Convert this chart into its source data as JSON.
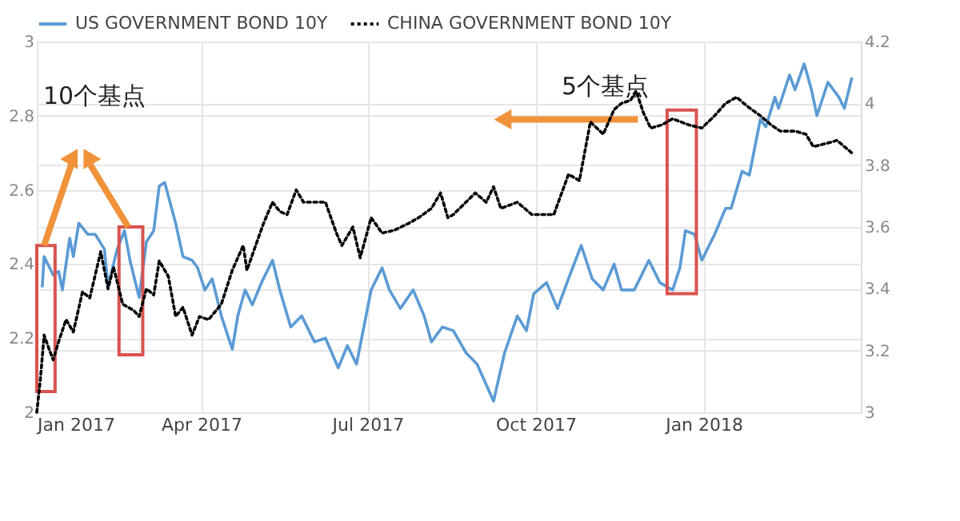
{
  "chart_data": {
    "type": "line",
    "legend": "top left",
    "grid": true,
    "marker": "none",
    "xlim": [
      "2017-01-01",
      "2018-03-28"
    ],
    "xticks": [
      {
        "value": "2017-01-01",
        "label": "Jan 2017"
      },
      {
        "value": "2017-04-01",
        "label": "Apr 2017"
      },
      {
        "value": "2017-07-01",
        "label": "Jul 2017"
      },
      {
        "value": "2017-10-01",
        "label": "Oct 2017"
      },
      {
        "value": "2018-01-01",
        "label": "Jan 2018"
      }
    ],
    "ylim": [
      2,
      3
    ],
    "yticks": [
      2,
      2.2,
      2.4,
      2.6,
      2.8,
      3
    ],
    "y2lim": [
      3,
      4.2
    ],
    "y2ticks": [
      3,
      3.2,
      3.4,
      3.6,
      3.8,
      4,
      4.2
    ],
    "annotations": [
      "10个基点",
      "5个基点"
    ],
    "series": [
      {
        "name": "US GOVERNMENT BOND 10Y",
        "color": "#5b9bd5",
        "line_style": "solid",
        "x": [
          "2017-01-04",
          "2017-01-05",
          "2017-01-10",
          "2017-01-13",
          "2017-01-15",
          "2017-01-19",
          "2017-01-21",
          "2017-01-24",
          "2017-01-29",
          "2017-02-02",
          "2017-02-07",
          "2017-02-09",
          "2017-02-14",
          "2017-02-18",
          "2017-02-21",
          "2017-02-26",
          "2017-03-02",
          "2017-03-06",
          "2017-03-09",
          "2017-03-12",
          "2017-03-18",
          "2017-03-22",
          "2017-03-27",
          "2017-03-30",
          "2017-04-03",
          "2017-04-07",
          "2017-04-12",
          "2017-04-18",
          "2017-04-21",
          "2017-04-25",
          "2017-04-29",
          "2017-05-04",
          "2017-05-10",
          "2017-05-14",
          "2017-05-20",
          "2017-05-26",
          "2017-06-02",
          "2017-06-08",
          "2017-06-15",
          "2017-06-20",
          "2017-06-25",
          "2017-07-03",
          "2017-07-09",
          "2017-07-13",
          "2017-07-19",
          "2017-07-26",
          "2017-08-01",
          "2017-08-05",
          "2017-08-11",
          "2017-08-17",
          "2017-08-24",
          "2017-08-30",
          "2017-09-08",
          "2017-09-14",
          "2017-09-21",
          "2017-09-26",
          "2017-09-30",
          "2017-10-07",
          "2017-10-13",
          "2017-10-19",
          "2017-10-26",
          "2017-11-01",
          "2017-11-07",
          "2017-11-13",
          "2017-11-17",
          "2017-11-24",
          "2017-12-02",
          "2017-12-08",
          "2017-12-15",
          "2017-12-19",
          "2017-12-22",
          "2017-12-27",
          "2017-12-31",
          "2018-01-07",
          "2018-01-13",
          "2018-01-16",
          "2018-01-22",
          "2018-01-26",
          "2018-02-01",
          "2018-02-04",
          "2018-02-09",
          "2018-02-11",
          "2018-02-17",
          "2018-02-20",
          "2018-02-25",
          "2018-03-01",
          "2018-03-04",
          "2018-03-10",
          "2018-03-16",
          "2018-03-19",
          "2018-03-23"
        ],
        "values": [
          2.34,
          2.42,
          2.37,
          2.38,
          2.33,
          2.47,
          2.42,
          2.51,
          2.48,
          2.48,
          2.44,
          2.34,
          2.44,
          2.49,
          2.41,
          2.31,
          2.46,
          2.49,
          2.61,
          2.62,
          2.51,
          2.42,
          2.41,
          2.39,
          2.33,
          2.36,
          2.26,
          2.17,
          2.26,
          2.33,
          2.29,
          2.35,
          2.41,
          2.33,
          2.23,
          2.26,
          2.19,
          2.2,
          2.12,
          2.18,
          2.13,
          2.33,
          2.39,
          2.33,
          2.28,
          2.33,
          2.26,
          2.19,
          2.23,
          2.22,
          2.16,
          2.13,
          2.03,
          2.16,
          2.26,
          2.22,
          2.32,
          2.35,
          2.28,
          2.36,
          2.45,
          2.36,
          2.33,
          2.4,
          2.33,
          2.33,
          2.41,
          2.35,
          2.33,
          2.39,
          2.49,
          2.48,
          2.41,
          2.48,
          2.55,
          2.55,
          2.65,
          2.64,
          2.79,
          2.77,
          2.85,
          2.82,
          2.91,
          2.87,
          2.94,
          2.87,
          2.8,
          2.89,
          2.85,
          2.82,
          2.9
        ]
      },
      {
        "name": "CHINA GOVERNMENT BOND 10Y",
        "color": "#000000",
        "line_style": "dotted",
        "axis": "y2",
        "x": [
          "2017-01-01",
          "2017-01-03",
          "2017-01-05",
          "2017-01-08",
          "2017-01-10",
          "2017-01-13",
          "2017-01-17",
          "2017-01-21",
          "2017-01-26",
          "2017-01-30",
          "2017-02-05",
          "2017-02-09",
          "2017-02-12",
          "2017-02-17",
          "2017-02-23",
          "2017-02-26",
          "2017-03-02",
          "2017-03-06",
          "2017-03-09",
          "2017-03-14",
          "2017-03-18",
          "2017-03-22",
          "2017-03-27",
          "2017-03-31",
          "2017-04-05",
          "2017-04-12",
          "2017-04-18",
          "2017-04-24",
          "2017-04-26",
          "2017-05-05",
          "2017-05-10",
          "2017-05-14",
          "2017-05-18",
          "2017-05-23",
          "2017-05-27",
          "2017-06-02",
          "2017-06-08",
          "2017-06-14",
          "2017-06-17",
          "2017-06-23",
          "2017-06-27",
          "2017-07-03",
          "2017-07-09",
          "2017-07-16",
          "2017-07-23",
          "2017-07-29",
          "2017-08-05",
          "2017-08-10",
          "2017-08-14",
          "2017-08-17",
          "2017-08-29",
          "2017-09-04",
          "2017-09-08",
          "2017-09-12",
          "2017-09-21",
          "2017-09-29",
          "2017-10-11",
          "2017-10-19",
          "2017-10-25",
          "2017-10-31",
          "2017-11-07",
          "2017-11-13",
          "2017-11-17",
          "2017-11-22",
          "2017-11-25",
          "2017-11-29",
          "2017-12-03",
          "2017-12-09",
          "2017-12-15",
          "2017-12-24",
          "2017-12-31",
          "2018-01-07",
          "2018-01-13",
          "2018-01-19",
          "2018-01-25",
          "2018-02-01",
          "2018-02-07",
          "2018-02-12",
          "2018-02-20",
          "2018-02-26",
          "2018-03-02",
          "2018-03-09",
          "2018-03-15",
          "2018-03-23"
        ],
        "values": [
          3.0,
          3.11,
          3.25,
          3.2,
          3.17,
          3.23,
          3.3,
          3.26,
          3.39,
          3.37,
          3.52,
          3.4,
          3.47,
          3.35,
          3.33,
          3.31,
          3.4,
          3.38,
          3.49,
          3.44,
          3.31,
          3.34,
          3.25,
          3.31,
          3.3,
          3.35,
          3.46,
          3.54,
          3.46,
          3.61,
          3.68,
          3.65,
          3.64,
          3.72,
          3.68,
          3.68,
          3.68,
          3.58,
          3.54,
          3.6,
          3.5,
          3.63,
          3.58,
          3.59,
          3.61,
          3.63,
          3.66,
          3.71,
          3.63,
          3.64,
          3.71,
          3.68,
          3.73,
          3.66,
          3.68,
          3.64,
          3.64,
          3.77,
          3.75,
          3.94,
          3.9,
          3.98,
          4.0,
          4.01,
          4.04,
          3.97,
          3.92,
          3.93,
          3.95,
          3.93,
          3.92,
          3.96,
          4.0,
          4.02,
          3.99,
          3.96,
          3.93,
          3.91,
          3.91,
          3.9,
          3.86,
          3.87,
          3.88,
          3.84
        ]
      }
    ]
  }
}
